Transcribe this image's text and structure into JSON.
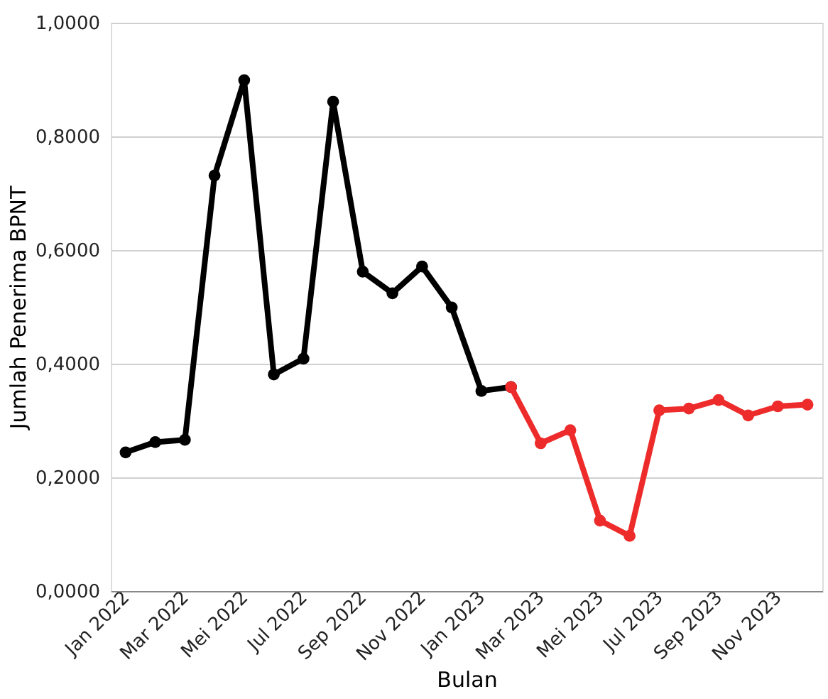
{
  "chart_data": {
    "type": "line",
    "xlabel": "Bulan",
    "ylabel": "Jumlah Penerima BPNT",
    "categories": [
      "Jan 2022",
      null,
      "Mar 2022",
      null,
      "Mei 2022",
      null,
      "Jul 2022",
      null,
      "Sep 2022",
      null,
      "Nov 2022",
      null,
      "Jan 2023",
      null,
      "Mar 2023",
      null,
      "Mei 2023",
      null,
      "Jul 2023",
      null,
      "Sep 2023",
      null,
      "Nov 2023",
      null
    ],
    "series": [
      {
        "color": "#000000",
        "values": [
          0.244,
          0.262,
          0.266,
          0.731,
          0.899,
          0.381,
          0.409,
          0.861,
          0.562,
          0.524,
          0.571,
          0.499,
          0.352,
          0.359,
          null,
          null,
          null,
          null,
          null,
          null,
          null,
          null,
          null,
          null
        ]
      },
      {
        "color": "#ee2b2b",
        "values": [
          null,
          null,
          null,
          null,
          null,
          null,
          null,
          null,
          null,
          null,
          null,
          null,
          null,
          0.359,
          0.26,
          0.283,
          0.124,
          0.097,
          0.318,
          0.321,
          0.336,
          0.309,
          0.325,
          0.328
        ]
      }
    ],
    "ylim": [
      0,
      1
    ],
    "yticks": [
      {
        "value": 0,
        "label": "0,0000"
      },
      {
        "value": 0.2,
        "label": "0,2000"
      },
      {
        "value": 0.4,
        "label": "0,4000"
      },
      {
        "value": 0.6,
        "label": "0,6000"
      },
      {
        "value": 0.8,
        "label": "0,8000"
      },
      {
        "value": 1,
        "label": "1,0000"
      }
    ],
    "grid": "y",
    "marker": "circle",
    "line_style": "solid"
  }
}
